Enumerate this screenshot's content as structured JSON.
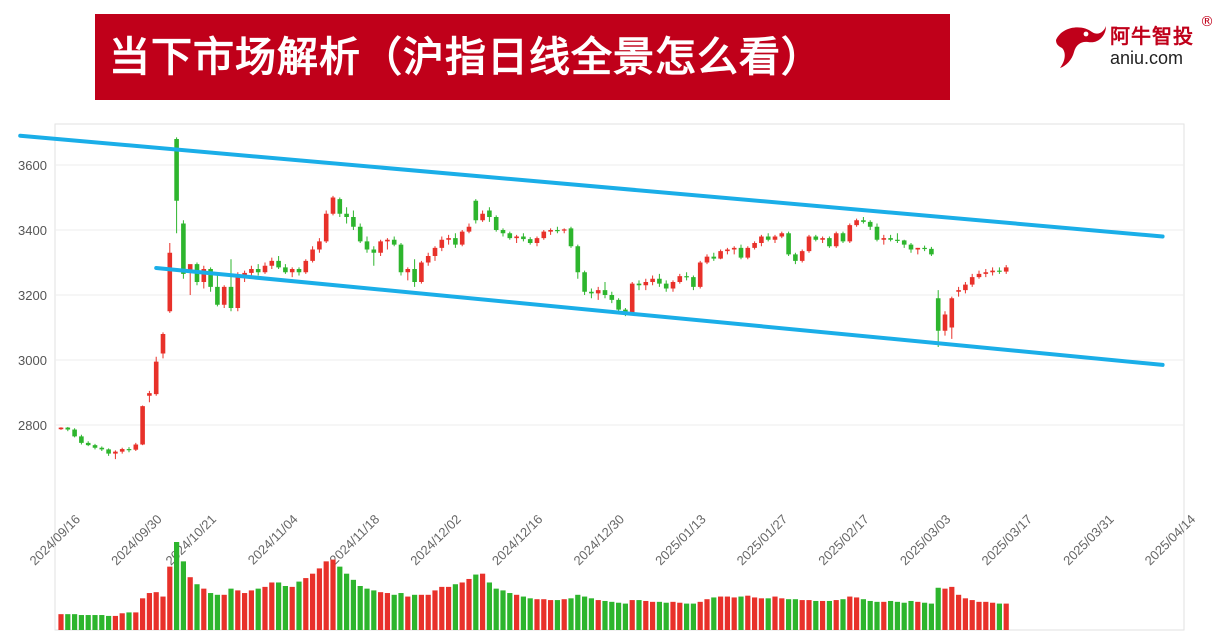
{
  "header": {
    "title": "当下市场解析（沪指日线全景怎么看）"
  },
  "logo": {
    "name_cn": "阿牛智投",
    "registered_mark": "®",
    "domain": "aniu.com"
  },
  "colors": {
    "title_bg": "#c0001a",
    "up": "#e8312a",
    "down": "#2db52d",
    "channel": "#1aaee8"
  },
  "chart_data": {
    "type": "candlestick",
    "title": "",
    "xlabel": "",
    "ylabel": "",
    "ylim": [
      2620,
      3710
    ],
    "yticks": [
      2800,
      3000,
      3200,
      3400,
      3600
    ],
    "x_tick_labels": [
      "2024/09/16",
      "2024/09/30",
      "2024/10/21",
      "2024/11/04",
      "2024/11/18",
      "2024/12/02",
      "2024/12/16",
      "2024/12/30",
      "2025/01/13",
      "2025/01/27",
      "2025/02/17",
      "2025/03/03",
      "2025/03/17",
      "2025/03/31",
      "2025/04/14"
    ],
    "x_tick_index": [
      0,
      12,
      20,
      32,
      44,
      56,
      68,
      80,
      92,
      104,
      116,
      128,
      140,
      152,
      164
    ],
    "grid": "horizontal",
    "candles": [
      [
        2787,
        2793,
        2785,
        2792
      ],
      [
        2792,
        2794,
        2781,
        2786
      ],
      [
        2786,
        2790,
        2762,
        2765
      ],
      [
        2765,
        2770,
        2740,
        2745
      ],
      [
        2745,
        2750,
        2735,
        2738
      ],
      [
        2738,
        2742,
        2725,
        2730
      ],
      [
        2730,
        2734,
        2720,
        2725
      ],
      [
        2725,
        2728,
        2705,
        2712
      ],
      [
        2712,
        2722,
        2695,
        2718
      ],
      [
        2718,
        2730,
        2712,
        2726
      ],
      [
        2726,
        2732,
        2716,
        2724
      ],
      [
        2724,
        2745,
        2720,
        2740
      ],
      [
        2740,
        2860,
        2738,
        2858
      ],
      [
        2890,
        2905,
        2870,
        2898
      ],
      [
        2895,
        3010,
        2890,
        2995
      ],
      [
        3020,
        3085,
        3005,
        3080
      ],
      [
        3150,
        3360,
        3145,
        3330
      ],
      [
        3680,
        3685,
        3390,
        3490
      ],
      [
        3420,
        3430,
        3250,
        3265
      ],
      [
        3270,
        3285,
        3200,
        3295
      ],
      [
        3295,
        3300,
        3230,
        3240
      ],
      [
        3240,
        3290,
        3220,
        3280
      ],
      [
        3280,
        3285,
        3210,
        3225
      ],
      [
        3225,
        3260,
        3165,
        3170
      ],
      [
        3170,
        3230,
        3160,
        3225
      ],
      [
        3225,
        3310,
        3150,
        3160
      ],
      [
        3160,
        3270,
        3150,
        3255
      ],
      [
        3255,
        3275,
        3240,
        3268
      ],
      [
        3268,
        3290,
        3255,
        3280
      ],
      [
        3280,
        3295,
        3260,
        3270
      ],
      [
        3270,
        3300,
        3265,
        3290
      ],
      [
        3290,
        3315,
        3280,
        3305
      ],
      [
        3305,
        3320,
        3280,
        3285
      ],
      [
        3285,
        3295,
        3265,
        3270
      ],
      [
        3270,
        3285,
        3255,
        3280
      ],
      [
        3280,
        3285,
        3260,
        3270
      ],
      [
        3270,
        3310,
        3265,
        3305
      ],
      [
        3305,
        3350,
        3300,
        3340
      ],
      [
        3340,
        3375,
        3330,
        3365
      ],
      [
        3365,
        3460,
        3360,
        3450
      ],
      [
        3450,
        3505,
        3445,
        3500
      ],
      [
        3495,
        3500,
        3440,
        3450
      ],
      [
        3450,
        3470,
        3420,
        3440
      ],
      [
        3440,
        3460,
        3400,
        3410
      ],
      [
        3410,
        3420,
        3360,
        3365
      ],
      [
        3365,
        3380,
        3330,
        3340
      ],
      [
        3340,
        3350,
        3290,
        3330
      ],
      [
        3330,
        3370,
        3320,
        3365
      ],
      [
        3365,
        3375,
        3340,
        3370
      ],
      [
        3370,
        3380,
        3350,
        3355
      ],
      [
        3355,
        3360,
        3260,
        3270
      ],
      [
        3270,
        3285,
        3245,
        3280
      ],
      [
        3280,
        3310,
        3225,
        3240
      ],
      [
        3240,
        3305,
        3235,
        3300
      ],
      [
        3300,
        3330,
        3290,
        3320
      ],
      [
        3320,
        3350,
        3305,
        3345
      ],
      [
        3345,
        3380,
        3335,
        3370
      ],
      [
        3370,
        3385,
        3355,
        3375
      ],
      [
        3375,
        3390,
        3345,
        3355
      ],
      [
        3355,
        3400,
        3350,
        3395
      ],
      [
        3395,
        3420,
        3390,
        3410
      ],
      [
        3490,
        3495,
        3420,
        3430
      ],
      [
        3430,
        3460,
        3425,
        3450
      ],
      [
        3460,
        3470,
        3425,
        3440
      ],
      [
        3440,
        3445,
        3395,
        3400
      ],
      [
        3400,
        3405,
        3380,
        3390
      ],
      [
        3390,
        3395,
        3370,
        3375
      ],
      [
        3375,
        3385,
        3360,
        3380
      ],
      [
        3380,
        3390,
        3365,
        3372
      ],
      [
        3372,
        3378,
        3355,
        3360
      ],
      [
        3360,
        3380,
        3350,
        3375
      ],
      [
        3375,
        3400,
        3370,
        3395
      ],
      [
        3395,
        3405,
        3385,
        3400
      ],
      [
        3400,
        3410,
        3390,
        3398
      ],
      [
        3398,
        3405,
        3390,
        3402
      ],
      [
        3405,
        3410,
        3345,
        3350
      ],
      [
        3350,
        3355,
        3250,
        3270
      ],
      [
        3270,
        3275,
        3200,
        3210
      ],
      [
        3210,
        3220,
        3190,
        3205
      ],
      [
        3205,
        3225,
        3185,
        3215
      ],
      [
        3215,
        3240,
        3190,
        3200
      ],
      [
        3200,
        3210,
        3175,
        3185
      ],
      [
        3185,
        3190,
        3140,
        3155
      ],
      [
        3155,
        3160,
        3135,
        3145
      ],
      [
        3145,
        3240,
        3140,
        3235
      ],
      [
        3235,
        3245,
        3215,
        3230
      ],
      [
        3230,
        3250,
        3215,
        3240
      ],
      [
        3240,
        3260,
        3230,
        3250
      ],
      [
        3250,
        3265,
        3225,
        3235
      ],
      [
        3235,
        3245,
        3210,
        3220
      ],
      [
        3220,
        3245,
        3210,
        3240
      ],
      [
        3240,
        3265,
        3235,
        3258
      ],
      [
        3258,
        3270,
        3245,
        3255
      ],
      [
        3255,
        3260,
        3215,
        3225
      ],
      [
        3225,
        3305,
        3220,
        3300
      ],
      [
        3300,
        3325,
        3295,
        3318
      ],
      [
        3318,
        3330,
        3305,
        3312
      ],
      [
        3312,
        3340,
        3310,
        3335
      ],
      [
        3335,
        3345,
        3325,
        3340
      ],
      [
        3340,
        3350,
        3325,
        3345
      ],
      [
        3345,
        3355,
        3310,
        3315
      ],
      [
        3315,
        3350,
        3310,
        3345
      ],
      [
        3345,
        3365,
        3340,
        3360
      ],
      [
        3360,
        3385,
        3350,
        3380
      ],
      [
        3380,
        3390,
        3365,
        3370
      ],
      [
        3370,
        3385,
        3360,
        3380
      ],
      [
        3380,
        3395,
        3375,
        3390
      ],
      [
        3390,
        3395,
        3320,
        3325
      ],
      [
        3325,
        3330,
        3295,
        3305
      ],
      [
        3305,
        3340,
        3300,
        3335
      ],
      [
        3335,
        3385,
        3330,
        3380
      ],
      [
        3380,
        3385,
        3365,
        3370
      ],
      [
        3370,
        3380,
        3360,
        3375
      ],
      [
        3375,
        3380,
        3345,
        3350
      ],
      [
        3350,
        3395,
        3345,
        3390
      ],
      [
        3390,
        3395,
        3360,
        3365
      ],
      [
        3365,
        3420,
        3360,
        3415
      ],
      [
        3415,
        3435,
        3410,
        3430
      ],
      [
        3430,
        3440,
        3420,
        3425
      ],
      [
        3425,
        3430,
        3400,
        3410
      ],
      [
        3410,
        3420,
        3365,
        3370
      ],
      [
        3370,
        3385,
        3355,
        3375
      ],
      [
        3375,
        3385,
        3365,
        3370
      ],
      [
        3370,
        3390,
        3360,
        3368
      ],
      [
        3368,
        3370,
        3345,
        3355
      ],
      [
        3355,
        3360,
        3330,
        3340
      ],
      [
        3340,
        3345,
        3325,
        3345
      ],
      [
        3345,
        3352,
        3335,
        3342
      ],
      [
        3342,
        3348,
        3320,
        3325
      ],
      [
        3190,
        3215,
        3040,
        3090
      ],
      [
        3090,
        3150,
        3075,
        3140
      ],
      [
        3100,
        3195,
        3065,
        3190
      ],
      [
        3210,
        3225,
        3195,
        3215
      ],
      [
        3215,
        3240,
        3205,
        3232
      ],
      [
        3232,
        3265,
        3225,
        3255
      ],
      [
        3255,
        3275,
        3250,
        3265
      ],
      [
        3265,
        3280,
        3255,
        3270
      ],
      [
        3270,
        3285,
        3260,
        3275
      ],
      [
        3275,
        3285,
        3265,
        3272
      ],
      [
        3272,
        3292,
        3265,
        3285
      ]
    ],
    "volume_relative": [
      0.18,
      0.18,
      0.18,
      0.17,
      0.17,
      0.17,
      0.17,
      0.16,
      0.16,
      0.19,
      0.2,
      0.2,
      0.36,
      0.42,
      0.43,
      0.38,
      0.72,
      1.0,
      0.78,
      0.6,
      0.52,
      0.47,
      0.42,
      0.4,
      0.4,
      0.47,
      0.45,
      0.42,
      0.45,
      0.47,
      0.49,
      0.54,
      0.54,
      0.5,
      0.49,
      0.55,
      0.59,
      0.64,
      0.7,
      0.78,
      0.8,
      0.72,
      0.64,
      0.57,
      0.5,
      0.47,
      0.45,
      0.43,
      0.42,
      0.4,
      0.42,
      0.38,
      0.4,
      0.4,
      0.4,
      0.45,
      0.49,
      0.49,
      0.52,
      0.54,
      0.58,
      0.63,
      0.64,
      0.54,
      0.47,
      0.45,
      0.42,
      0.4,
      0.38,
      0.36,
      0.35,
      0.35,
      0.34,
      0.34,
      0.35,
      0.36,
      0.4,
      0.38,
      0.36,
      0.34,
      0.33,
      0.32,
      0.31,
      0.3,
      0.34,
      0.34,
      0.33,
      0.32,
      0.32,
      0.31,
      0.32,
      0.31,
      0.3,
      0.3,
      0.32,
      0.35,
      0.37,
      0.38,
      0.38,
      0.37,
      0.38,
      0.39,
      0.37,
      0.36,
      0.36,
      0.38,
      0.36,
      0.35,
      0.35,
      0.34,
      0.34,
      0.33,
      0.33,
      0.33,
      0.34,
      0.35,
      0.38,
      0.37,
      0.35,
      0.33,
      0.32,
      0.32,
      0.33,
      0.32,
      0.31,
      0.33,
      0.32,
      0.31,
      0.3,
      0.48,
      0.47,
      0.49,
      0.4,
      0.36,
      0.34,
      0.32,
      0.32,
      0.31,
      0.3,
      0.3
    ],
    "channel_lines": [
      {
        "name": "upper",
        "from": [
          -6,
          3690
        ],
        "to": [
          162,
          3380
        ]
      },
      {
        "name": "lower",
        "from": [
          14,
          3283
        ],
        "to": [
          162,
          2985
        ]
      }
    ]
  }
}
